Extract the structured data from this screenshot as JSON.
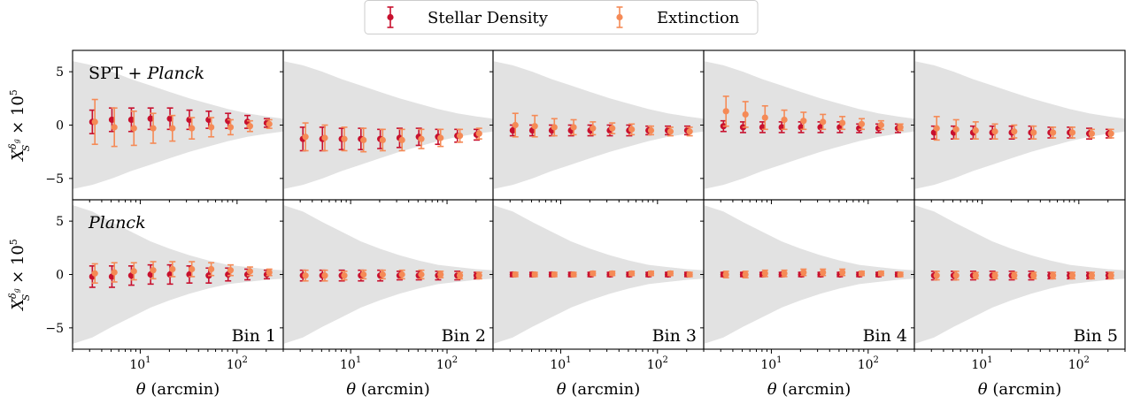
{
  "legend": {
    "items": [
      {
        "label": "Stellar Density",
        "color": "#c8102e"
      },
      {
        "label": "Extinction",
        "color": "#f58a56"
      }
    ]
  },
  "x_axis_label": "θ (arcmin)",
  "y_axis_label": "X_S^{δ_g} × 10^5",
  "chart_data": {
    "type": "scatter",
    "x_scale": "log",
    "xlim": [
      2,
      300
    ],
    "ylim": [
      -7,
      7
    ],
    "x_ticks": [
      10,
      100
    ],
    "x_tick_labels": [
      "10^1",
      "10^2"
    ],
    "y_ticks": [
      -5,
      0,
      5
    ],
    "y_tick_labels": [
      "−5",
      "0",
      "5"
    ],
    "bins": [
      "Bin 1",
      "Bin 2",
      "Bin 3",
      "Bin 4",
      "Bin 5"
    ],
    "rows": [
      {
        "label": "SPT + Planck",
        "label_plain": "SPT + ",
        "label_italic": "Planck"
      },
      {
        "label": "Planck",
        "label_plain": "",
        "label_italic": "Planck"
      }
    ],
    "x_stellar": [
      3.2,
      5.1,
      8.1,
      12.8,
      20.3,
      32.2,
      51,
      80.8,
      128,
      203
    ],
    "x_extinction": [
      3.4,
      5.4,
      8.6,
      13.6,
      21.5,
      34.1,
      54.1,
      85.7,
      136,
      215
    ],
    "shaded_band": {
      "x": [
        2,
        3.2,
        5.1,
        8.1,
        12.8,
        20.3,
        32.2,
        51,
        80.8,
        128,
        203,
        300
      ],
      "row_half_widths": [
        [
          6.0,
          5.6,
          5.0,
          4.3,
          3.7,
          3.1,
          2.5,
          2.0,
          1.5,
          1.1,
          0.8,
          0.6
        ],
        [
          6.5,
          5.9,
          4.9,
          4.0,
          3.1,
          2.4,
          1.8,
          1.3,
          0.9,
          0.7,
          0.5,
          0.4
        ]
      ]
    },
    "series": [
      {
        "name": "Stellar Density",
        "row": 0,
        "bin": 1,
        "y": [
          0.3,
          0.5,
          0.5,
          0.6,
          0.6,
          0.5,
          0.5,
          0.4,
          0.3,
          0.2
        ],
        "err": [
          1.1,
          1.1,
          1.1,
          1.0,
          1.0,
          0.9,
          0.8,
          0.7,
          0.6,
          0.4
        ]
      },
      {
        "name": "Extinction",
        "row": 0,
        "bin": 1,
        "y": [
          0.3,
          -0.2,
          -0.3,
          -0.3,
          -0.3,
          -0.3,
          -0.2,
          -0.2,
          -0.1,
          0.1
        ],
        "err": [
          2.1,
          1.8,
          1.6,
          1.4,
          1.2,
          1.0,
          0.9,
          0.7,
          0.5,
          0.4
        ]
      },
      {
        "name": "Stellar Density",
        "row": 0,
        "bin": 2,
        "y": [
          -1.3,
          -1.3,
          -1.3,
          -1.3,
          -1.3,
          -1.2,
          -1.1,
          -1.1,
          -1.0,
          -0.9
        ],
        "err": [
          1.1,
          1.1,
          1.0,
          1.0,
          0.9,
          0.9,
          0.8,
          0.7,
          0.6,
          0.5
        ]
      },
      {
        "name": "Extinction",
        "row": 0,
        "bin": 2,
        "y": [
          -1.1,
          -1.2,
          -1.3,
          -1.4,
          -1.4,
          -1.4,
          -1.3,
          -1.2,
          -1.0,
          -0.8
        ],
        "err": [
          1.3,
          1.2,
          1.1,
          1.1,
          1.0,
          1.0,
          0.9,
          0.8,
          0.6,
          0.5
        ]
      },
      {
        "name": "Stellar Density",
        "row": 0,
        "bin": 3,
        "y": [
          -0.5,
          -0.5,
          -0.5,
          -0.5,
          -0.5,
          -0.5,
          -0.5,
          -0.5,
          -0.5,
          -0.5
        ],
        "err": [
          0.5,
          0.5,
          0.5,
          0.5,
          0.5,
          0.5,
          0.5,
          0.4,
          0.4,
          0.4
        ]
      },
      {
        "name": "Extinction",
        "row": 0,
        "bin": 3,
        "y": [
          0.0,
          -0.1,
          -0.2,
          -0.2,
          -0.3,
          -0.3,
          -0.4,
          -0.5,
          -0.6,
          -0.6
        ],
        "err": [
          1.1,
          1.0,
          0.8,
          0.7,
          0.6,
          0.5,
          0.5,
          0.4,
          0.4,
          0.4
        ]
      },
      {
        "name": "Stellar Density",
        "row": 0,
        "bin": 4,
        "y": [
          -0.1,
          -0.2,
          -0.2,
          -0.2,
          -0.2,
          -0.2,
          -0.2,
          -0.3,
          -0.3,
          -0.3
        ],
        "err": [
          0.5,
          0.5,
          0.5,
          0.5,
          0.5,
          0.5,
          0.5,
          0.4,
          0.4,
          0.4
        ]
      },
      {
        "name": "Extinction",
        "row": 0,
        "bin": 4,
        "y": [
          1.3,
          1.0,
          0.7,
          0.5,
          0.4,
          0.3,
          0.2,
          0.1,
          0.0,
          -0.2
        ],
        "err": [
          1.4,
          1.2,
          1.1,
          0.9,
          0.8,
          0.7,
          0.6,
          0.5,
          0.4,
          0.3
        ]
      },
      {
        "name": "Stellar Density",
        "row": 0,
        "bin": 5,
        "y": [
          -0.7,
          -0.7,
          -0.7,
          -0.7,
          -0.7,
          -0.7,
          -0.7,
          -0.7,
          -0.8,
          -0.8
        ],
        "err": [
          0.6,
          0.6,
          0.6,
          0.6,
          0.6,
          0.6,
          0.5,
          0.5,
          0.5,
          0.4
        ]
      },
      {
        "name": "Extinction",
        "row": 0,
        "bin": 5,
        "y": [
          -0.3,
          -0.4,
          -0.5,
          -0.6,
          -0.6,
          -0.7,
          -0.7,
          -0.7,
          -0.8,
          -0.8
        ],
        "err": [
          1.1,
          0.9,
          0.8,
          0.7,
          0.6,
          0.6,
          0.5,
          0.5,
          0.4,
          0.4
        ]
      },
      {
        "name": "Stellar Density",
        "row": 1,
        "bin": 1,
        "y": [
          -0.2,
          -0.2,
          -0.1,
          0.0,
          0.0,
          0.0,
          -0.1,
          0.0,
          0.0,
          0.0
        ],
        "err": [
          1.0,
          1.0,
          0.9,
          0.9,
          0.9,
          0.8,
          0.7,
          0.6,
          0.5,
          0.4
        ]
      },
      {
        "name": "Extinction",
        "row": 1,
        "bin": 1,
        "y": [
          0.1,
          0.2,
          0.3,
          0.4,
          0.5,
          0.5,
          0.5,
          0.4,
          0.3,
          0.2
        ],
        "err": [
          0.9,
          0.9,
          0.8,
          0.8,
          0.7,
          0.7,
          0.6,
          0.5,
          0.4,
          0.3
        ]
      },
      {
        "name": "Stellar Density",
        "row": 1,
        "bin": 2,
        "y": [
          -0.1,
          -0.1,
          -0.1,
          -0.1,
          -0.1,
          -0.1,
          -0.1,
          -0.1,
          -0.1,
          -0.1
        ],
        "err": [
          0.5,
          0.5,
          0.5,
          0.5,
          0.5,
          0.4,
          0.4,
          0.4,
          0.4,
          0.3
        ]
      },
      {
        "name": "Extinction",
        "row": 1,
        "bin": 2,
        "y": [
          -0.1,
          -0.1,
          -0.1,
          0.0,
          0.0,
          0.0,
          0.0,
          0.0,
          -0.1,
          -0.1
        ],
        "err": [
          0.5,
          0.5,
          0.4,
          0.4,
          0.4,
          0.4,
          0.4,
          0.3,
          0.3,
          0.3
        ]
      },
      {
        "name": "Stellar Density",
        "row": 1,
        "bin": 3,
        "y": [
          0.0,
          0.0,
          0.0,
          0.0,
          0.0,
          0.0,
          0.0,
          0.0,
          0.0,
          0.0
        ],
        "err": [
          0.2,
          0.2,
          0.2,
          0.2,
          0.2,
          0.2,
          0.2,
          0.2,
          0.2,
          0.2
        ]
      },
      {
        "name": "Extinction",
        "row": 1,
        "bin": 3,
        "y": [
          0.0,
          0.0,
          0.0,
          0.0,
          0.1,
          0.1,
          0.1,
          0.1,
          0.1,
          0.0
        ],
        "err": [
          0.2,
          0.2,
          0.2,
          0.2,
          0.2,
          0.2,
          0.2,
          0.2,
          0.2,
          0.2
        ]
      },
      {
        "name": "Stellar Density",
        "row": 1,
        "bin": 4,
        "y": [
          0.0,
          0.0,
          0.0,
          0.0,
          0.0,
          0.0,
          0.0,
          0.0,
          0.0,
          0.0
        ],
        "err": [
          0.2,
          0.2,
          0.2,
          0.2,
          0.2,
          0.2,
          0.2,
          0.2,
          0.2,
          0.2
        ]
      },
      {
        "name": "Extinction",
        "row": 1,
        "bin": 4,
        "y": [
          0.0,
          0.0,
          0.1,
          0.1,
          0.2,
          0.2,
          0.2,
          0.1,
          0.1,
          0.0
        ],
        "err": [
          0.3,
          0.3,
          0.3,
          0.3,
          0.3,
          0.3,
          0.3,
          0.2,
          0.2,
          0.2
        ]
      },
      {
        "name": "Stellar Density",
        "row": 1,
        "bin": 5,
        "y": [
          -0.1,
          -0.1,
          -0.1,
          -0.1,
          -0.1,
          -0.1,
          -0.1,
          -0.1,
          -0.1,
          -0.1
        ],
        "err": [
          0.4,
          0.4,
          0.4,
          0.4,
          0.4,
          0.4,
          0.3,
          0.3,
          0.3,
          0.3
        ]
      },
      {
        "name": "Extinction",
        "row": 1,
        "bin": 5,
        "y": [
          -0.1,
          -0.1,
          -0.1,
          -0.1,
          -0.1,
          -0.1,
          -0.1,
          -0.1,
          -0.1,
          -0.1
        ],
        "err": [
          0.4,
          0.4,
          0.3,
          0.3,
          0.3,
          0.3,
          0.3,
          0.3,
          0.3,
          0.3
        ]
      }
    ]
  }
}
